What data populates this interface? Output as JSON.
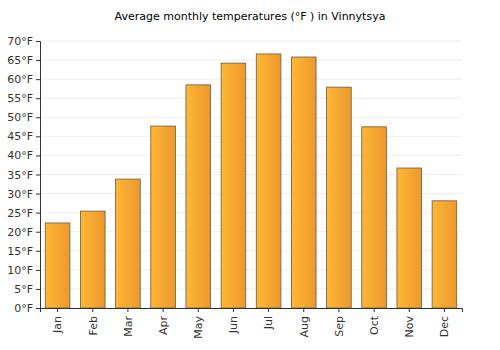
{
  "chart_data": {
    "type": "bar",
    "title": "Average monthly temperatures (°F ) in Vinnytsya",
    "categories": [
      "Jan",
      "Feb",
      "Mar",
      "Apr",
      "May",
      "Jun",
      "Jul",
      "Aug",
      "Sep",
      "Oct",
      "Nov",
      "Dec"
    ],
    "values": [
      22.3,
      25.4,
      33.8,
      47.7,
      58.5,
      64.2,
      66.6,
      65.8,
      57.9,
      47.5,
      36.7,
      28.1
    ],
    "color": "#f9a12f",
    "ylim": [
      0,
      70
    ],
    "yticks": [
      {
        "value": 0,
        "label": "0°F"
      },
      {
        "value": 5,
        "label": "5°F"
      },
      {
        "value": 10,
        "label": "10°F"
      },
      {
        "value": 15,
        "label": "15°F"
      },
      {
        "value": 20,
        "label": "20°F"
      },
      {
        "value": 25,
        "label": "25°F"
      },
      {
        "value": 30,
        "label": "30°F"
      },
      {
        "value": 35,
        "label": "35°F"
      },
      {
        "value": 40,
        "label": "40°F"
      },
      {
        "value": 45,
        "label": "45°F"
      },
      {
        "value": 50,
        "label": "50°F"
      },
      {
        "value": 55,
        "label": "55°F"
      },
      {
        "value": 60,
        "label": "60°F"
      },
      {
        "value": 65,
        "label": "65°F"
      },
      {
        "value": 70,
        "label": "70°F"
      }
    ],
    "grid": true
  }
}
